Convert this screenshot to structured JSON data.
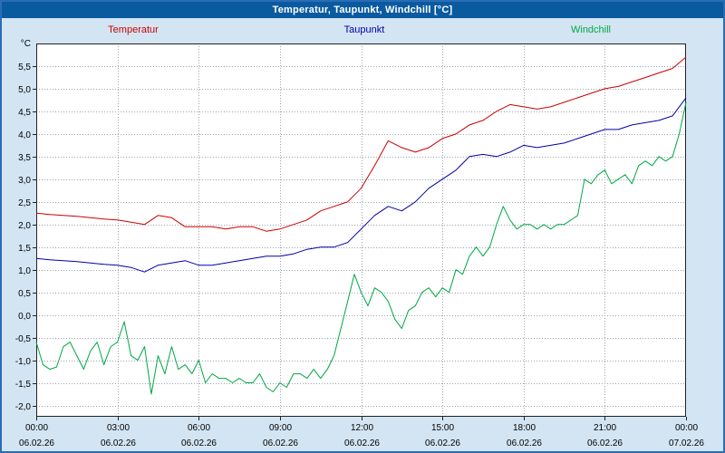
{
  "window": {
    "title": "Temperatur, Taupunkt, Windchill [°C]"
  },
  "chart_data": {
    "type": "line",
    "title": "Temperatur, Taupunkt, Windchill [°C]",
    "ylabel": "°C",
    "xlabel": "",
    "ylim": [
      -2.25,
      6.0
    ],
    "xlim_hours": [
      0,
      24
    ],
    "grid": "dotted",
    "grid_color": "#98a4b2",
    "legend_position": "top",
    "y_ticks": [
      {
        "value": -2.0,
        "label": "-2,0"
      },
      {
        "value": -1.5,
        "label": "-1,5"
      },
      {
        "value": -1.0,
        "label": "-1,0"
      },
      {
        "value": -0.5,
        "label": "-0,5"
      },
      {
        "value": 0.0,
        "label": "0,0"
      },
      {
        "value": 0.5,
        "label": "0,5"
      },
      {
        "value": 1.0,
        "label": "1,0"
      },
      {
        "value": 1.5,
        "label": "1,5"
      },
      {
        "value": 2.0,
        "label": "2,0"
      },
      {
        "value": 2.5,
        "label": "2,5"
      },
      {
        "value": 3.0,
        "label": "3,0"
      },
      {
        "value": 3.5,
        "label": "3,5"
      },
      {
        "value": 4.0,
        "label": "4,0"
      },
      {
        "value": 4.5,
        "label": "4,5"
      },
      {
        "value": 5.0,
        "label": "5,0"
      },
      {
        "value": 5.5,
        "label": "5,5"
      }
    ],
    "x_ticks": [
      {
        "hour": 0,
        "time": "00:00",
        "date": "06.02.26"
      },
      {
        "hour": 3,
        "time": "03:00",
        "date": "06.02.26"
      },
      {
        "hour": 6,
        "time": "06:00",
        "date": "06.02.26"
      },
      {
        "hour": 9,
        "time": "09:00",
        "date": "06.02.26"
      },
      {
        "hour": 12,
        "time": "12:00",
        "date": "06.02.26"
      },
      {
        "hour": 15,
        "time": "15:00",
        "date": "06.02.26"
      },
      {
        "hour": 18,
        "time": "18:00",
        "date": "06.02.26"
      },
      {
        "hour": 21,
        "time": "21:00",
        "date": "06.02.26"
      },
      {
        "hour": 24,
        "time": "00:00",
        "date": "07.02.26"
      }
    ],
    "series": [
      {
        "name": "Temperatur",
        "color": "#cc0000",
        "x_start_hour": 0,
        "x_step_hours": 0.5,
        "values": [
          2.25,
          2.22,
          2.2,
          2.18,
          2.15,
          2.12,
          2.1,
          2.05,
          2.0,
          2.2,
          2.15,
          1.95,
          1.95,
          1.95,
          1.9,
          1.95,
          1.95,
          1.85,
          1.9,
          2.0,
          2.1,
          2.3,
          2.4,
          2.5,
          2.8,
          3.3,
          3.85,
          3.7,
          3.6,
          3.7,
          3.9,
          4.0,
          4.2,
          4.3,
          4.5,
          4.65,
          4.6,
          4.55,
          4.6,
          4.7,
          4.8,
          4.9,
          5.0,
          5.05,
          5.15,
          5.25,
          5.35,
          5.45,
          5.7
        ]
      },
      {
        "name": "Taupunkt",
        "color": "#0000a8",
        "x_start_hour": 0,
        "x_step_hours": 0.5,
        "values": [
          1.25,
          1.22,
          1.2,
          1.18,
          1.15,
          1.12,
          1.1,
          1.05,
          0.95,
          1.1,
          1.15,
          1.2,
          1.1,
          1.1,
          1.15,
          1.2,
          1.25,
          1.3,
          1.3,
          1.35,
          1.45,
          1.5,
          1.5,
          1.6,
          1.9,
          2.2,
          2.4,
          2.3,
          2.5,
          2.8,
          3.0,
          3.2,
          3.5,
          3.55,
          3.5,
          3.6,
          3.75,
          3.7,
          3.75,
          3.8,
          3.9,
          4.0,
          4.1,
          4.1,
          4.2,
          4.25,
          4.3,
          4.4,
          4.8
        ]
      },
      {
        "name": "Windchill",
        "color": "#00a843",
        "x_start_hour": 0,
        "x_step_hours": 0.25,
        "values": [
          -0.6,
          -1.1,
          -1.2,
          -1.15,
          -0.7,
          -0.6,
          -0.9,
          -1.2,
          -0.8,
          -0.6,
          -1.1,
          -0.7,
          -0.6,
          -0.15,
          -0.9,
          -1.0,
          -0.7,
          -1.75,
          -0.9,
          -1.3,
          -0.7,
          -1.2,
          -1.1,
          -1.3,
          -1.0,
          -1.5,
          -1.3,
          -1.4,
          -1.4,
          -1.5,
          -1.4,
          -1.5,
          -1.5,
          -1.3,
          -1.6,
          -1.7,
          -1.5,
          -1.6,
          -1.3,
          -1.3,
          -1.4,
          -1.2,
          -1.4,
          -1.2,
          -0.9,
          -0.3,
          0.3,
          0.9,
          0.5,
          0.2,
          0.6,
          0.5,
          0.3,
          -0.1,
          -0.3,
          0.1,
          0.2,
          0.5,
          0.6,
          0.4,
          0.6,
          0.5,
          1.0,
          0.9,
          1.3,
          1.5,
          1.3,
          1.5,
          2.0,
          2.4,
          2.1,
          1.9,
          2.0,
          2.0,
          1.9,
          2.0,
          1.9,
          2.0,
          2.0,
          2.1,
          2.2,
          3.0,
          2.9,
          3.1,
          3.2,
          2.9,
          3.0,
          3.1,
          2.9,
          3.3,
          3.4,
          3.3,
          3.5,
          3.4,
          3.5,
          4.0,
          4.7
        ]
      }
    ]
  }
}
